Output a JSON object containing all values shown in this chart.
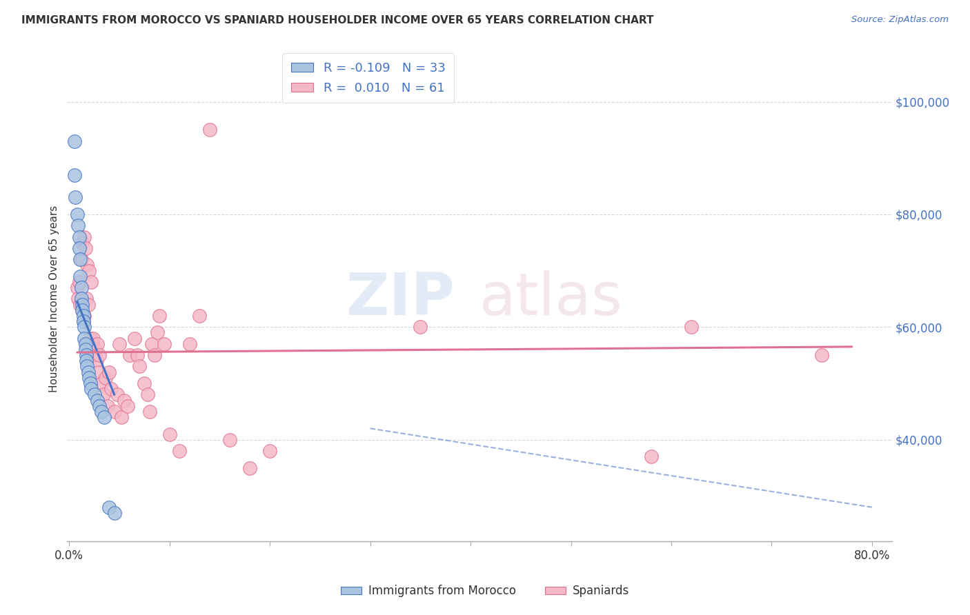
{
  "title": "IMMIGRANTS FROM MOROCCO VS SPANIARD HOUSEHOLDER INCOME OVER 65 YEARS CORRELATION CHART",
  "source": "Source: ZipAtlas.com",
  "ylabel": "Householder Income Over 65 years",
  "ytick_values": [
    40000,
    60000,
    80000,
    100000
  ],
  "ylim": [
    22000,
    108000
  ],
  "xlim": [
    -0.002,
    0.82
  ],
  "legend_label1": "Immigrants from Morocco",
  "legend_label2": "Spaniards",
  "r1": "-0.109",
  "n1": "33",
  "r2": "0.010",
  "n2": "61",
  "color_blue": "#a8c4e0",
  "color_pink": "#f4b8c8",
  "line_blue": "#4472c4",
  "line_pink": "#e07090",
  "watermark_zip": "ZIP",
  "watermark_atlas": "atlas",
  "morocco_x": [
    0.005,
    0.005,
    0.006,
    0.008,
    0.009,
    0.01,
    0.01,
    0.011,
    0.011,
    0.012,
    0.012,
    0.013,
    0.013,
    0.014,
    0.014,
    0.015,
    0.015,
    0.016,
    0.016,
    0.017,
    0.017,
    0.018,
    0.019,
    0.02,
    0.021,
    0.022,
    0.025,
    0.028,
    0.03,
    0.032,
    0.035,
    0.04,
    0.045
  ],
  "morocco_y": [
    93000,
    87000,
    83000,
    80000,
    78000,
    76000,
    74000,
    72000,
    69000,
    67000,
    65000,
    64000,
    63000,
    62000,
    61000,
    60000,
    58000,
    57000,
    56000,
    55000,
    54000,
    53000,
    52000,
    51000,
    50000,
    49000,
    48000,
    47000,
    46000,
    45000,
    44000,
    28000,
    27000
  ],
  "spaniard_x": [
    0.008,
    0.009,
    0.01,
    0.011,
    0.012,
    0.013,
    0.013,
    0.014,
    0.015,
    0.015,
    0.016,
    0.017,
    0.018,
    0.019,
    0.02,
    0.021,
    0.022,
    0.023,
    0.024,
    0.025,
    0.026,
    0.027,
    0.028,
    0.029,
    0.03,
    0.032,
    0.034,
    0.036,
    0.038,
    0.04,
    0.042,
    0.045,
    0.048,
    0.05,
    0.052,
    0.055,
    0.058,
    0.06,
    0.065,
    0.068,
    0.07,
    0.075,
    0.078,
    0.08,
    0.082,
    0.085,
    0.088,
    0.09,
    0.095,
    0.1,
    0.11,
    0.12,
    0.13,
    0.14,
    0.16,
    0.18,
    0.2,
    0.35,
    0.58,
    0.62,
    0.75
  ],
  "spaniard_y": [
    67000,
    65000,
    68000,
    64000,
    72000,
    63000,
    75000,
    61000,
    76000,
    62000,
    74000,
    65000,
    71000,
    64000,
    70000,
    58000,
    68000,
    57000,
    58000,
    55000,
    56000,
    54000,
    57000,
    52000,
    55000,
    50000,
    48000,
    51000,
    46000,
    52000,
    49000,
    45000,
    48000,
    57000,
    44000,
    47000,
    46000,
    55000,
    58000,
    55000,
    53000,
    50000,
    48000,
    45000,
    57000,
    55000,
    59000,
    62000,
    57000,
    41000,
    38000,
    57000,
    62000,
    95000,
    40000,
    35000,
    38000,
    60000,
    37000,
    60000,
    55000
  ],
  "blue_line_x": [
    0.008,
    0.045
  ],
  "blue_line_y": [
    64500,
    48000
  ],
  "pink_line_x": [
    0.008,
    0.78
  ],
  "pink_line_y": [
    55500,
    56500
  ],
  "dash_line_x": [
    0.3,
    0.8
  ],
  "dash_line_y": [
    42000,
    28000
  ]
}
